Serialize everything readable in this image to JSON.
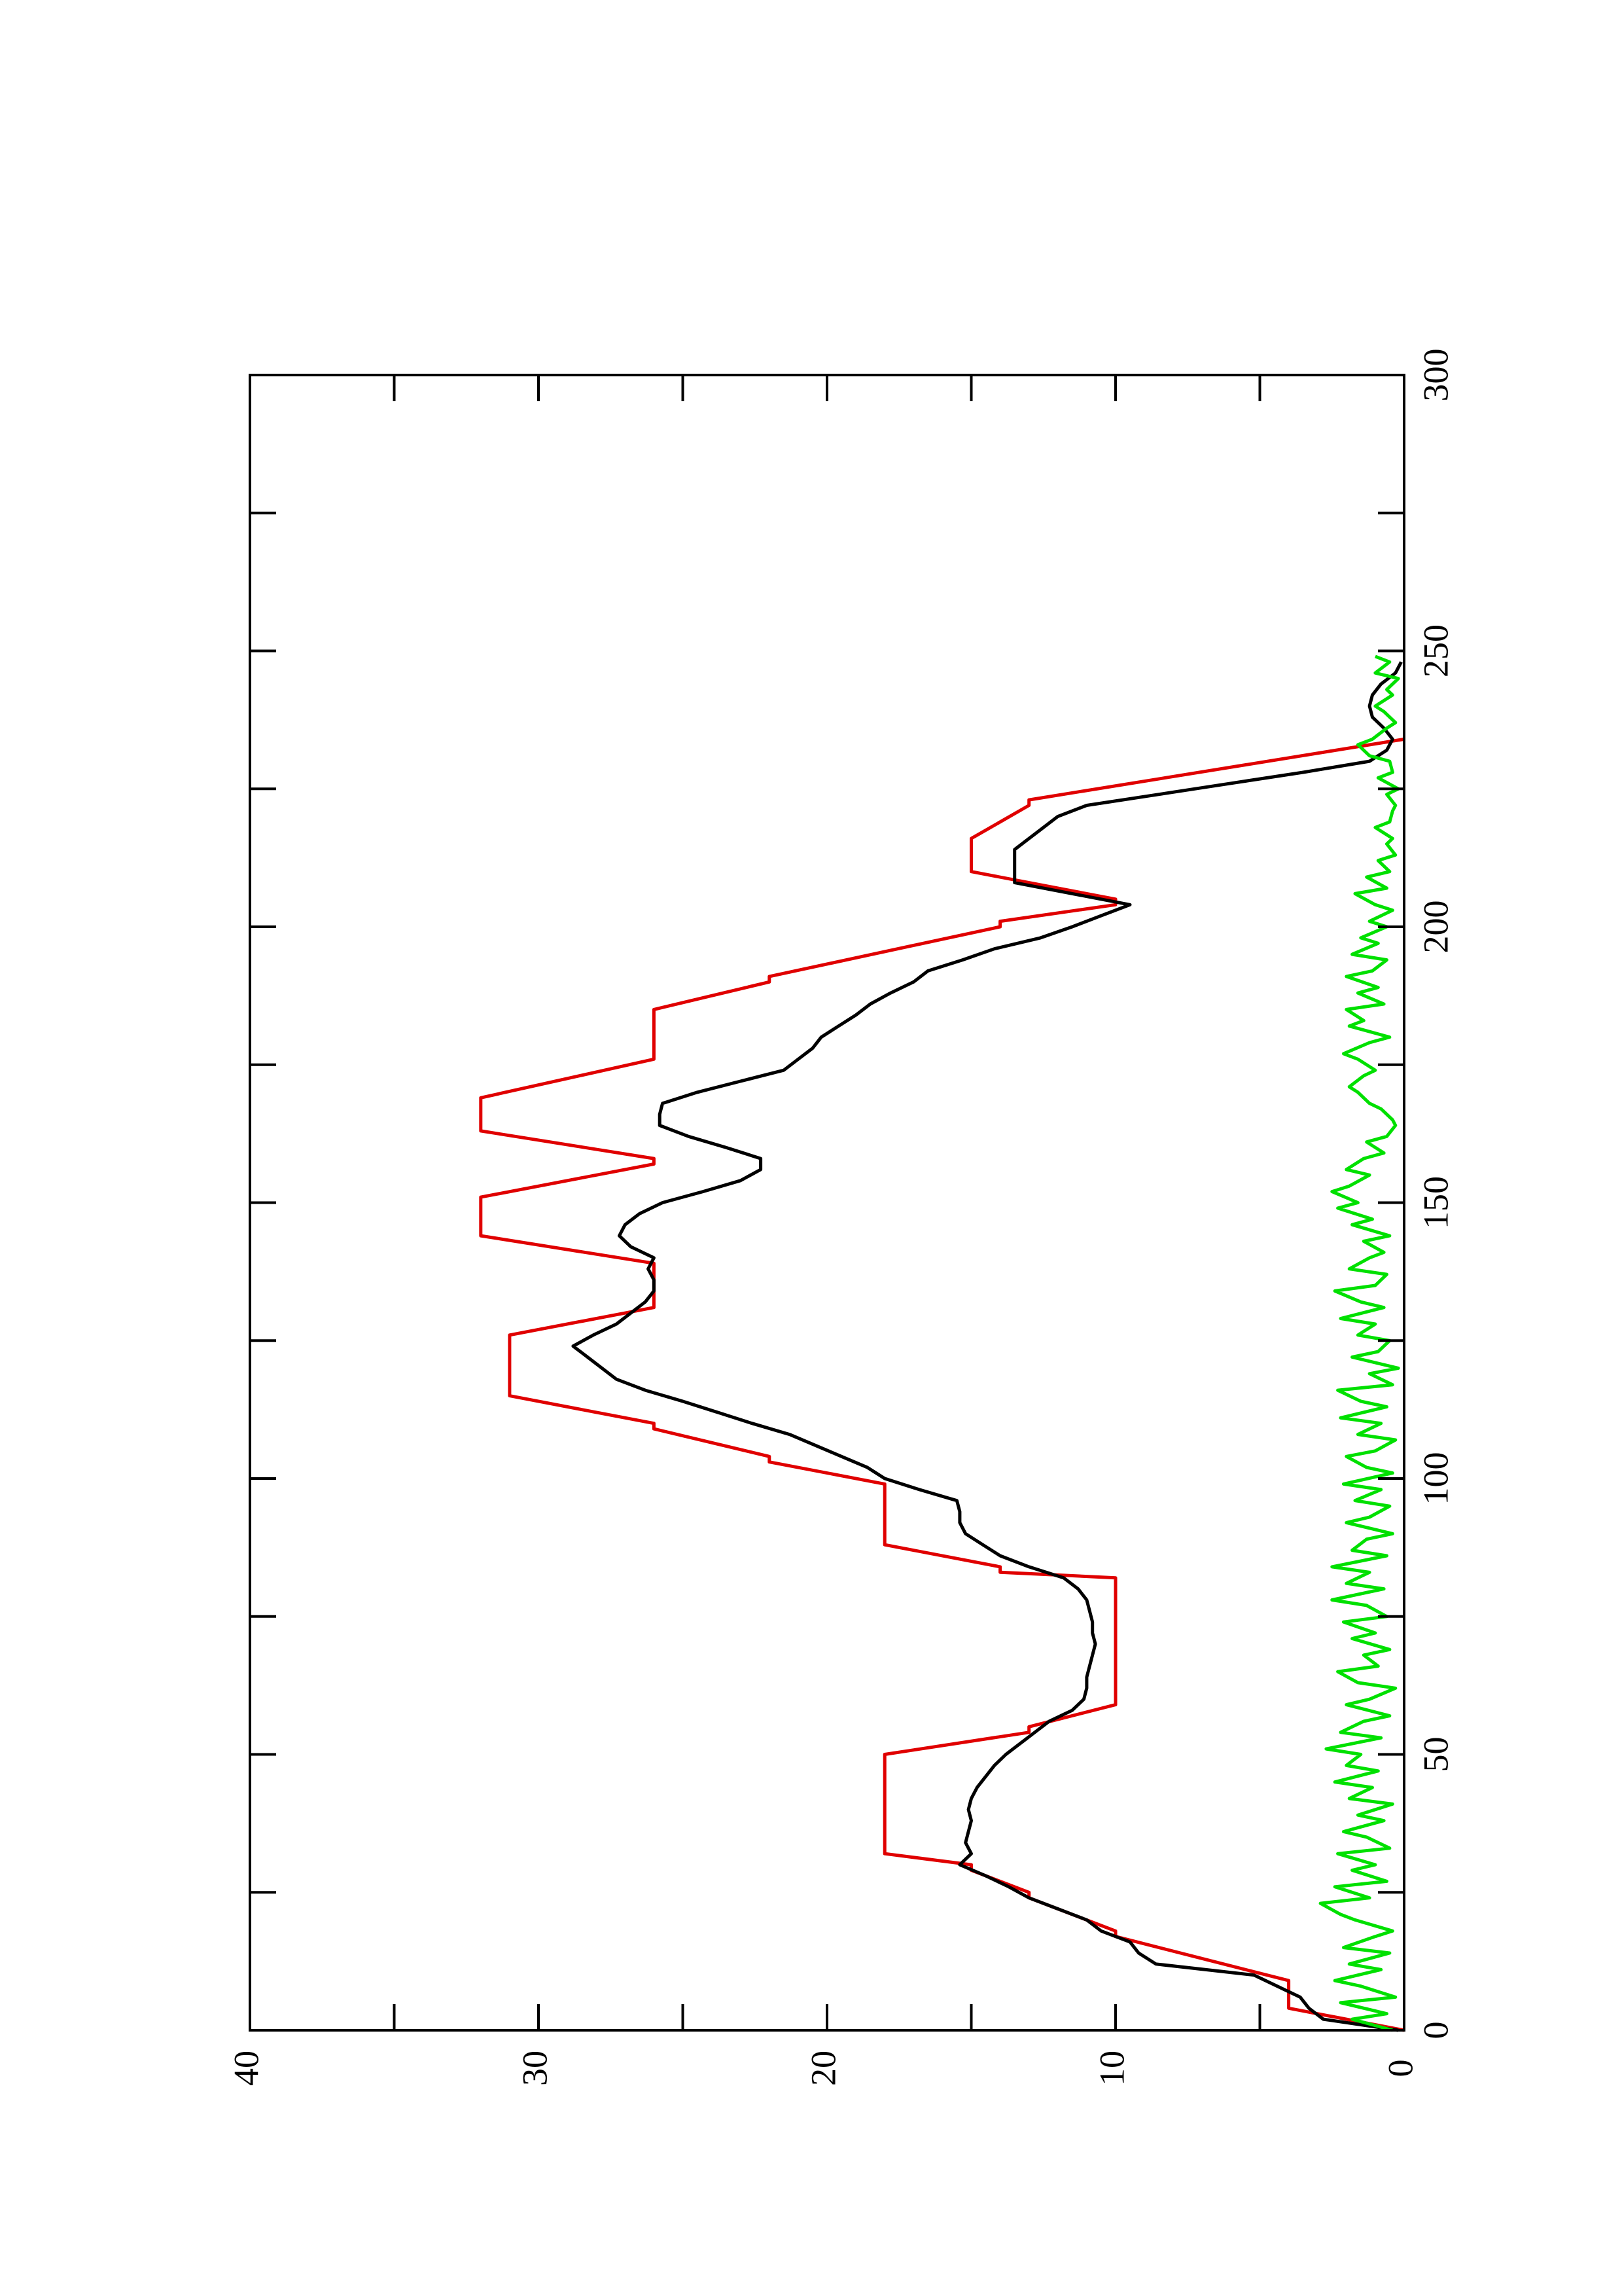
{
  "chart_data": {
    "type": "line",
    "orientation": "rotated-90-ccw",
    "xlim": [
      0,
      300
    ],
    "ylim": [
      0,
      40
    ],
    "x_ticks": [
      "0",
      "50",
      "100",
      "150",
      "200",
      "250",
      "300"
    ],
    "y_ticks": [
      "0",
      "10",
      "20",
      "30",
      "40"
    ],
    "grid": false,
    "title": "",
    "xlabel": "",
    "ylabel": "",
    "series": [
      {
        "color": "#e00000",
        "x": [
          0,
          4,
          4,
          8,
          9,
          17,
          18,
          24,
          25,
          29,
          30,
          32,
          33,
          49,
          50,
          54,
          55,
          59,
          60,
          81,
          82,
          83,
          84,
          88,
          89,
          98,
          99,
          103,
          104,
          109,
          110,
          115,
          116,
          125,
          126,
          131,
          132,
          138,
          139,
          144,
          145,
          150,
          151,
          157,
          158,
          163,
          164,
          168,
          169,
          176,
          177,
          184,
          185,
          190,
          191,
          200,
          201,
          204,
          205,
          210,
          211,
          215,
          216,
          222,
          223,
          234
        ],
        "y": [
          0,
          4,
          4,
          4,
          4,
          10,
          10,
          13,
          13,
          15,
          15,
          18,
          18,
          18,
          18,
          13,
          13,
          10,
          10,
          10,
          10,
          14,
          14,
          18,
          18,
          18,
          18,
          22,
          22,
          26,
          26,
          31,
          31,
          31,
          31,
          26,
          26,
          26,
          26,
          32,
          32,
          32,
          32,
          26,
          26,
          32,
          32,
          32,
          32,
          26,
          26,
          26,
          26,
          22,
          22,
          14,
          14,
          10,
          10,
          15,
          15,
          15,
          15,
          13,
          13,
          0
        ]
      },
      {
        "color": "#000000",
        "x": [
          0,
          2,
          4,
          6,
          8,
          10,
          12,
          14,
          16,
          18,
          20,
          22,
          24,
          26,
          28,
          30,
          32,
          34,
          36,
          38,
          40,
          42,
          44,
          46,
          48,
          50,
          52,
          54,
          56,
          58,
          60,
          62,
          64,
          66,
          68,
          70,
          72,
          74,
          76,
          78,
          80,
          82,
          84,
          86,
          88,
          90,
          92,
          94,
          96,
          98,
          100,
          102,
          104,
          106,
          108,
          110,
          112,
          114,
          116,
          118,
          120,
          122,
          124,
          126,
          128,
          130,
          132,
          134,
          136,
          138,
          140,
          142,
          144,
          146,
          148,
          150,
          152,
          154,
          156,
          158,
          160,
          162,
          164,
          166,
          168,
          170,
          172,
          174,
          176,
          178,
          180,
          182,
          184,
          186,
          188,
          190,
          192,
          194,
          196,
          198,
          200,
          202,
          204,
          206,
          208,
          210,
          212,
          214,
          216,
          218,
          220,
          222,
          224,
          226,
          228,
          230,
          232,
          234,
          236,
          238,
          240,
          242,
          244,
          246,
          248
        ],
        "y": [
          0.2,
          2.8,
          3.3,
          3.6,
          4.4,
          5.2,
          8.6,
          9.2,
          9.5,
          10.5,
          11.0,
          12.0,
          13.0,
          13.7,
          14.5,
          15.4,
          15.0,
          15.2,
          15.1,
          15.0,
          15.1,
          15.0,
          14.8,
          14.5,
          14.2,
          13.8,
          13.3,
          12.8,
          12.3,
          11.5,
          11.1,
          11.0,
          11.0,
          10.9,
          10.8,
          10.7,
          10.8,
          10.8,
          10.9,
          11.0,
          11.3,
          11.8,
          13.0,
          14.0,
          14.6,
          15.2,
          15.4,
          15.4,
          15.5,
          16.8,
          18.0,
          18.6,
          19.5,
          20.4,
          21.3,
          22.6,
          23.8,
          25.0,
          26.3,
          27.3,
          27.8,
          28.3,
          28.8,
          28.1,
          27.3,
          26.8,
          26.3,
          26.0,
          26.0,
          26.2,
          26.0,
          26.8,
          27.2,
          27.0,
          26.5,
          25.7,
          24.3,
          23.0,
          22.3,
          22.3,
          23.5,
          24.8,
          25.8,
          25.8,
          25.7,
          24.5,
          23.0,
          21.5,
          21.0,
          20.5,
          20.2,
          19.6,
          19.0,
          18.5,
          17.8,
          17.0,
          16.5,
          15.3,
          14.2,
          12.6,
          11.5,
          10.5,
          9.5,
          11.5,
          13.5,
          13.5,
          13.5,
          13.5,
          13.0,
          12.5,
          12.0,
          11.0,
          8.5,
          6.0,
          3.5,
          1.2,
          0.6,
          0.4,
          0.7,
          1.1,
          1.2,
          1.1,
          0.8,
          0.3,
          0.1
        ]
      },
      {
        "color": "#00e000",
        "x": [
          0,
          2,
          3,
          5,
          6,
          8,
          9,
          11,
          12,
          14,
          15,
          17,
          18,
          20,
          21,
          23,
          24,
          26,
          27,
          29,
          30,
          32,
          33,
          35,
          36,
          38,
          39,
          41,
          42,
          44,
          45,
          47,
          48,
          50,
          51,
          53,
          54,
          56,
          57,
          59,
          60,
          62,
          63,
          65,
          66,
          68,
          69,
          71,
          72,
          74,
          75,
          77,
          78,
          80,
          81,
          83,
          84,
          86,
          87,
          89,
          90,
          92,
          93,
          95,
          96,
          98,
          99,
          101,
          102,
          104,
          105,
          107,
          108,
          110,
          111,
          113,
          114,
          116,
          117,
          119,
          120,
          122,
          123,
          125,
          126,
          128,
          129,
          131,
          132,
          134,
          135,
          137,
          138,
          140,
          141,
          143,
          144,
          146,
          147,
          149,
          150,
          152,
          153,
          155,
          156,
          158,
          159,
          161,
          162,
          164,
          165,
          167,
          168,
          170,
          171,
          173,
          174,
          176,
          177,
          179,
          180,
          182,
          183,
          185,
          186,
          188,
          189,
          191,
          192,
          194,
          195,
          197,
          198,
          200,
          201,
          203,
          204,
          206,
          207,
          209,
          210,
          212,
          213,
          215,
          216,
          218,
          219,
          221,
          222,
          224,
          225,
          227,
          228,
          230,
          231,
          233,
          234,
          236,
          237,
          239,
          240,
          242,
          243,
          245,
          246,
          248,
          249
        ],
        "y": [
          0.4,
          1.8,
          0.6,
          2.2,
          0.3,
          1.5,
          2.4,
          0.8,
          1.9,
          0.5,
          2.1,
          1.0,
          0.4,
          1.7,
          2.2,
          2.9,
          1.2,
          2.4,
          0.6,
          1.8,
          1.0,
          2.3,
          0.5,
          1.3,
          2.1,
          0.7,
          1.6,
          0.4,
          1.9,
          1.1,
          2.4,
          0.9,
          2.0,
          1.5,
          2.7,
          0.8,
          2.2,
          1.4,
          0.5,
          2.0,
          1.2,
          0.3,
          1.6,
          2.3,
          0.9,
          1.4,
          0.5,
          1.8,
          1.0,
          2.1,
          0.6,
          1.3,
          2.5,
          0.7,
          2.0,
          1.2,
          2.5,
          0.6,
          1.8,
          1.3,
          0.4,
          2.0,
          1.2,
          0.5,
          1.7,
          0.8,
          2.1,
          0.4,
          1.3,
          2.0,
          1.0,
          0.3,
          1.6,
          0.8,
          2.2,
          0.6,
          1.5,
          2.3,
          0.4,
          1.2,
          0.2,
          1.8,
          0.9,
          0.5,
          1.6,
          1.0,
          2.2,
          0.7,
          1.5,
          2.4,
          1.0,
          0.6,
          1.9,
          1.2,
          0.7,
          1.4,
          0.5,
          1.8,
          1.1,
          2.3,
          1.6,
          2.5,
          1.9,
          1.2,
          2.0,
          1.4,
          0.7,
          1.3,
          0.6,
          0.3,
          0.4,
          0.8,
          1.2,
          1.6,
          1.9,
          1.4,
          1.0,
          1.6,
          2.1,
          1.2,
          0.5,
          1.9,
          1.4,
          2.0,
          0.7,
          1.6,
          0.9,
          2.0,
          1.1,
          0.6,
          1.8,
          0.9,
          1.5,
          0.6,
          1.2,
          0.4,
          1.0,
          1.7,
          0.6,
          1.3,
          0.5,
          0.9,
          0.3,
          0.6,
          0.4,
          1.0,
          0.5,
          0.4,
          0.3,
          0.6,
          0.2,
          0.9,
          0.4,
          0.5,
          1.2,
          1.6,
          1.1,
          0.6,
          0.3,
          0.7,
          1.0,
          0.4,
          0.6,
          0.2,
          1.0,
          0.5,
          1.0
        ]
      }
    ]
  }
}
